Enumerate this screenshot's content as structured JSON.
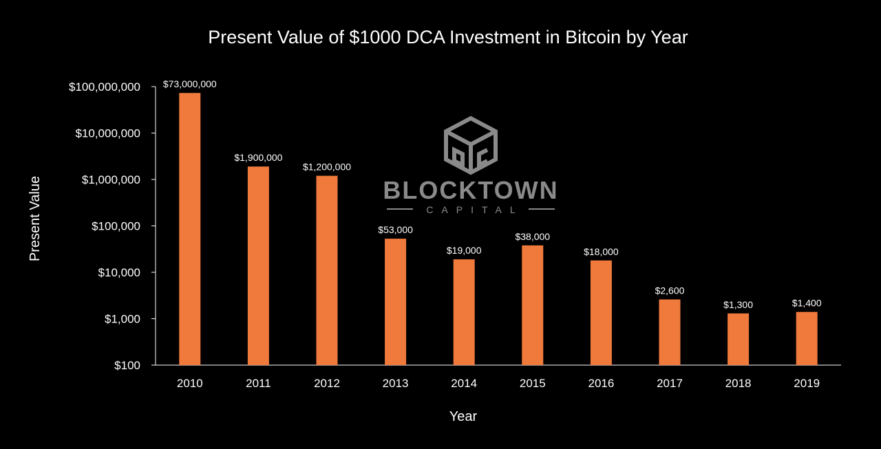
{
  "colors": {
    "background": "#000000",
    "bar": "#f07a3c",
    "text": "#ffffff",
    "axis": "#ffffff",
    "watermark": "#8a8a8a"
  },
  "watermark": {
    "icon": "tbc-cube-logo-icon",
    "name": "BLOCKTOWN",
    "sub": "CAPITAL"
  },
  "chart_data": {
    "type": "bar",
    "title": "Present Value of $1000 DCA Investment in Bitcoin by Year",
    "xlabel": "Year",
    "ylabel": "Present Value",
    "yscale": "log",
    "ylim": [
      100,
      100000000
    ],
    "grid": false,
    "legend": "none",
    "categories": [
      "2010",
      "2011",
      "2012",
      "2013",
      "2014",
      "2015",
      "2016",
      "2017",
      "2018",
      "2019"
    ],
    "values": [
      73000000,
      1900000,
      1200000,
      53000,
      19000,
      38000,
      18000,
      2600,
      1300,
      1400
    ],
    "data_labels": [
      "$73,000,000",
      "$1,900,000",
      "$1,200,000",
      "$53,000",
      "$19,000",
      "$38,000",
      "$18,000",
      "$2,600",
      "$1,300",
      "$1,400"
    ],
    "y_ticks": [
      100,
      1000,
      10000,
      100000,
      1000000,
      10000000,
      100000000
    ],
    "y_tick_labels": [
      "$100",
      "$1,000",
      "$10,000",
      "$100,000",
      "$1,000,000",
      "$10,000,000",
      "$100,000,000"
    ]
  }
}
